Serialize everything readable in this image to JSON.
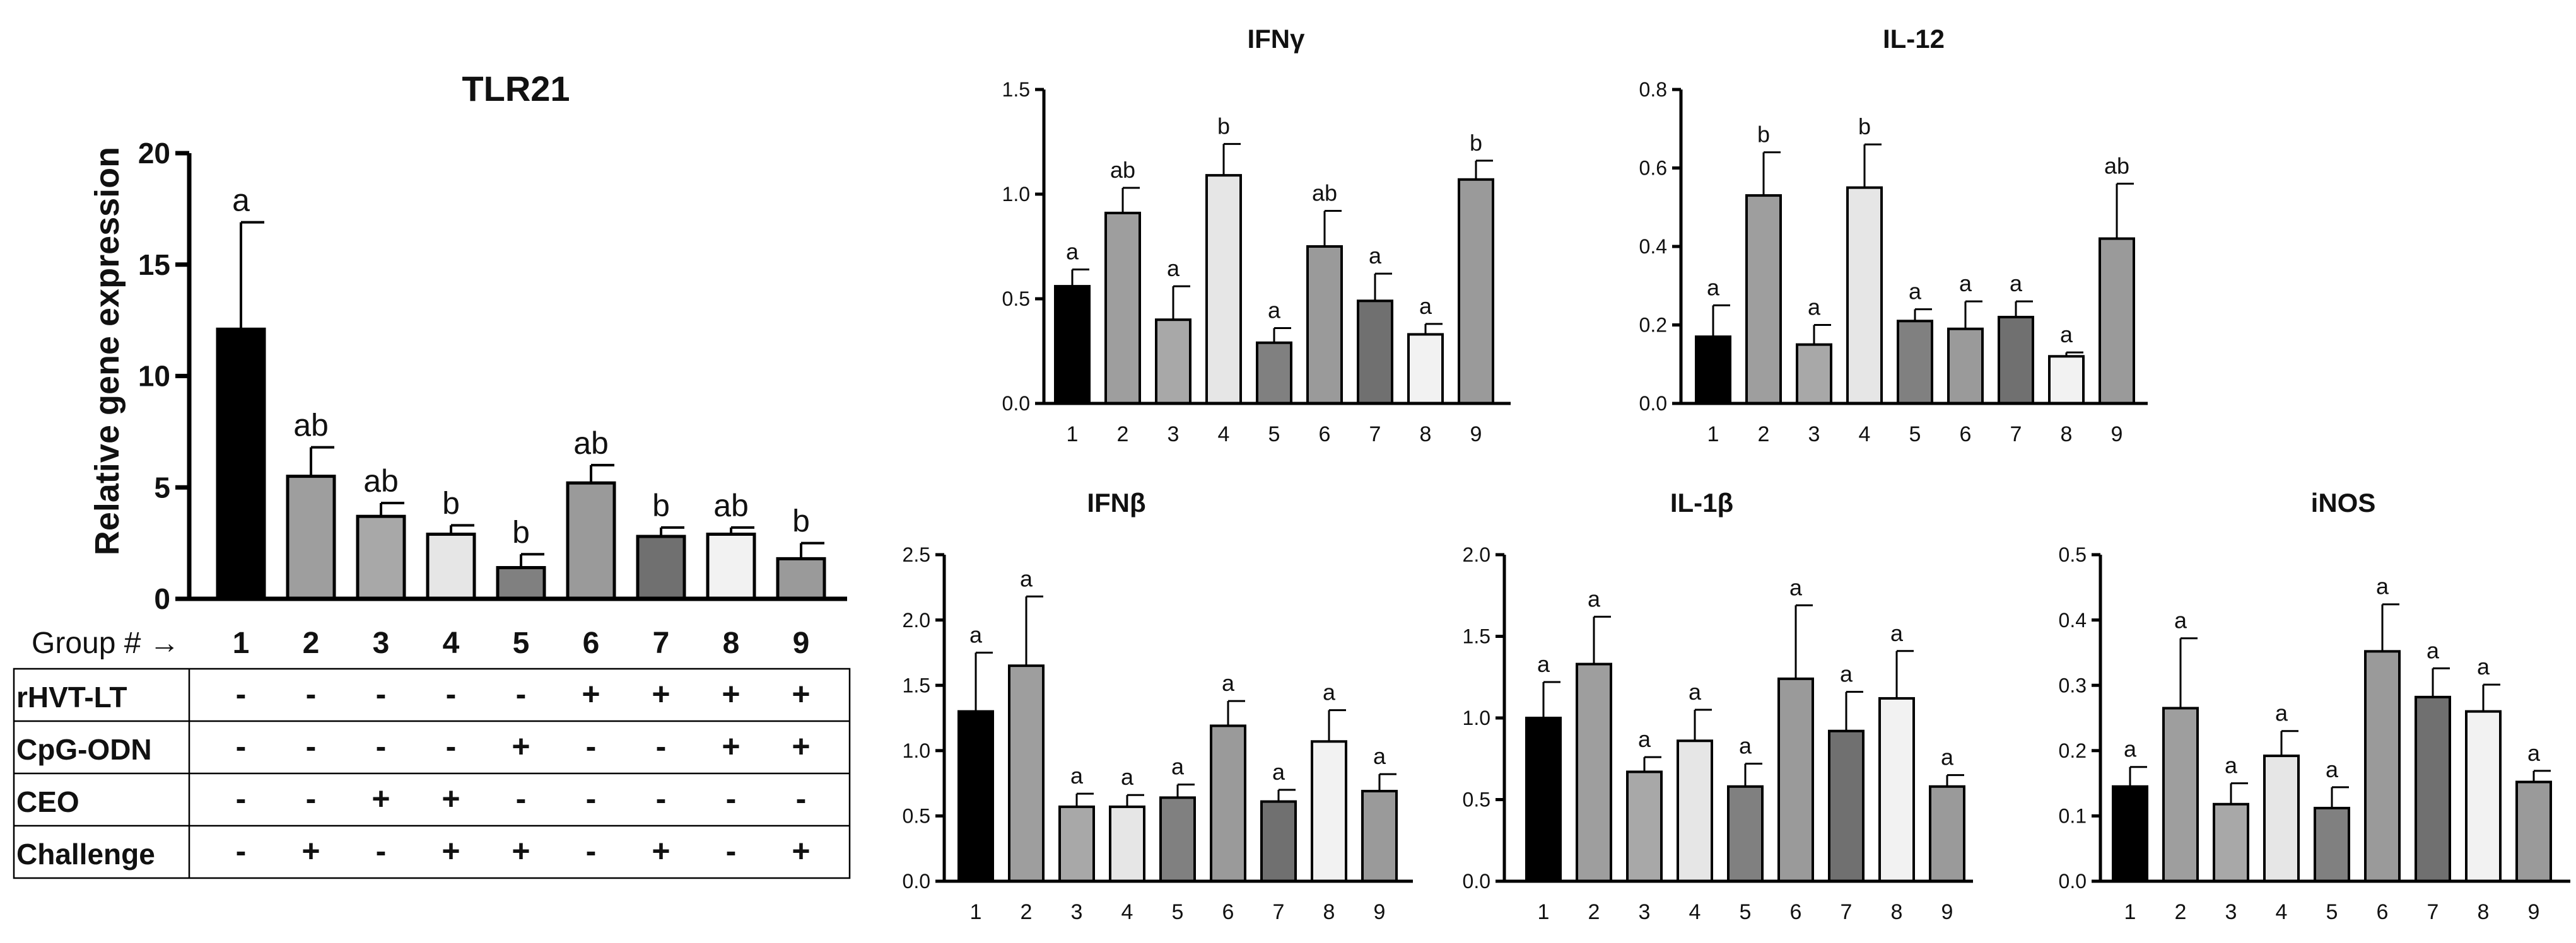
{
  "figure": {
    "group_row_label": "Group # →",
    "table": {
      "rows": [
        {
          "label": "rHVT-LT",
          "values": [
            "-",
            "-",
            "-",
            "-",
            "-",
            "+",
            "+",
            "+",
            "+"
          ]
        },
        {
          "label": "CpG-ODN",
          "values": [
            "-",
            "-",
            "-",
            "-",
            "+",
            "-",
            "-",
            "+",
            "+"
          ]
        },
        {
          "label": "CEO",
          "values": [
            "-",
            "-",
            "+",
            "+",
            "-",
            "-",
            "-",
            "-",
            "-"
          ]
        },
        {
          "label": "Challenge",
          "values": [
            "-",
            "+",
            "-",
            "+",
            "+",
            "-",
            "+",
            "-",
            "+"
          ]
        }
      ]
    }
  },
  "bar_colors": [
    "#000000",
    "#9e9e9e",
    "#a8a8a8",
    "#e6e6e6",
    "#808080",
    "#9a9a9a",
    "#707070",
    "#f2f2f2",
    "#9a9a9a"
  ],
  "chart_data": [
    {
      "id": "tlr21",
      "type": "bar",
      "title": "TLR21",
      "xlabel": "",
      "ylabel": "Relative gene expression",
      "categories": [
        "1",
        "2",
        "3",
        "4",
        "5",
        "6",
        "7",
        "8",
        "9"
      ],
      "values": [
        12.1,
        5.5,
        3.7,
        2.9,
        1.4,
        5.2,
        2.8,
        2.9,
        1.8
      ],
      "errors": [
        4.8,
        1.3,
        0.6,
        0.4,
        0.6,
        0.8,
        0.4,
        0.3,
        0.7
      ],
      "labels": [
        "a",
        "ab",
        "ab",
        "b",
        "b",
        "ab",
        "b",
        "ab",
        "b"
      ],
      "ylim": [
        0,
        20
      ],
      "yticks": [
        "0",
        "5",
        "10",
        "15",
        "20"
      ]
    },
    {
      "id": "ifng",
      "type": "bar",
      "title": "IFNγ",
      "categories": [
        "1",
        "2",
        "3",
        "4",
        "5",
        "6",
        "7",
        "8",
        "9"
      ],
      "values": [
        0.56,
        0.91,
        0.4,
        1.09,
        0.29,
        0.75,
        0.49,
        0.33,
        1.07
      ],
      "errors": [
        0.08,
        0.12,
        0.16,
        0.15,
        0.07,
        0.17,
        0.13,
        0.05,
        0.09
      ],
      "labels": [
        "a",
        "ab",
        "a",
        "b",
        "a",
        "ab",
        "a",
        "a",
        "b"
      ],
      "ylim": [
        0,
        1.5
      ],
      "yticks": [
        "0.0",
        "0.5",
        "1.0",
        "1.5"
      ]
    },
    {
      "id": "il12",
      "type": "bar",
      "title": "IL-12",
      "categories": [
        "1",
        "2",
        "3",
        "4",
        "5",
        "6",
        "7",
        "8",
        "9"
      ],
      "values": [
        0.17,
        0.53,
        0.15,
        0.55,
        0.21,
        0.19,
        0.22,
        0.12,
        0.42
      ],
      "errors": [
        0.08,
        0.11,
        0.05,
        0.11,
        0.03,
        0.07,
        0.04,
        0.01,
        0.14
      ],
      "labels": [
        "a",
        "b",
        "a",
        "b",
        "a",
        "a",
        "a",
        "a",
        "ab"
      ],
      "ylim": [
        0,
        0.8
      ],
      "yticks": [
        "0.0",
        "0.2",
        "0.4",
        "0.6",
        "0.8"
      ]
    },
    {
      "id": "ifnb",
      "type": "bar",
      "title": "IFNβ",
      "categories": [
        "1",
        "2",
        "3",
        "4",
        "5",
        "6",
        "7",
        "8",
        "9"
      ],
      "values": [
        1.3,
        1.65,
        0.57,
        0.57,
        0.64,
        1.19,
        0.61,
        1.07,
        0.69
      ],
      "errors": [
        0.45,
        0.53,
        0.1,
        0.09,
        0.1,
        0.19,
        0.09,
        0.24,
        0.13
      ],
      "labels": [
        "a",
        "a",
        "a",
        "a",
        "a",
        "a",
        "a",
        "a",
        "a"
      ],
      "ylim": [
        0,
        2.5
      ],
      "yticks": [
        "0.0",
        "0.5",
        "1.0",
        "1.5",
        "2.0",
        "2.5"
      ]
    },
    {
      "id": "il1b",
      "type": "bar",
      "title": "IL-1β",
      "categories": [
        "1",
        "2",
        "3",
        "4",
        "5",
        "6",
        "7",
        "8",
        "9"
      ],
      "values": [
        1.0,
        1.33,
        0.67,
        0.86,
        0.58,
        1.24,
        0.92,
        1.12,
        0.58
      ],
      "errors": [
        0.22,
        0.29,
        0.09,
        0.19,
        0.14,
        0.45,
        0.24,
        0.29,
        0.07
      ],
      "labels": [
        "a",
        "a",
        "a",
        "a",
        "a",
        "a",
        "a",
        "a",
        "a"
      ],
      "ylim": [
        0,
        2.0
      ],
      "yticks": [
        "0.0",
        "0.5",
        "1.0",
        "1.5",
        "2.0"
      ]
    },
    {
      "id": "inos",
      "type": "bar",
      "title": "iNOS",
      "categories": [
        "1",
        "2",
        "3",
        "4",
        "5",
        "6",
        "7",
        "8",
        "9"
      ],
      "values": [
        0.145,
        0.265,
        0.118,
        0.192,
        0.112,
        0.352,
        0.282,
        0.26,
        0.152
      ],
      "errors": [
        0.03,
        0.107,
        0.032,
        0.038,
        0.032,
        0.072,
        0.044,
        0.041,
        0.017
      ],
      "labels": [
        "a",
        "a",
        "a",
        "a",
        "a",
        "a",
        "a",
        "a",
        "a"
      ],
      "ylim": [
        0,
        0.5
      ],
      "yticks": [
        "0.0",
        "0.1",
        "0.2",
        "0.3",
        "0.4",
        "0.5"
      ]
    }
  ]
}
